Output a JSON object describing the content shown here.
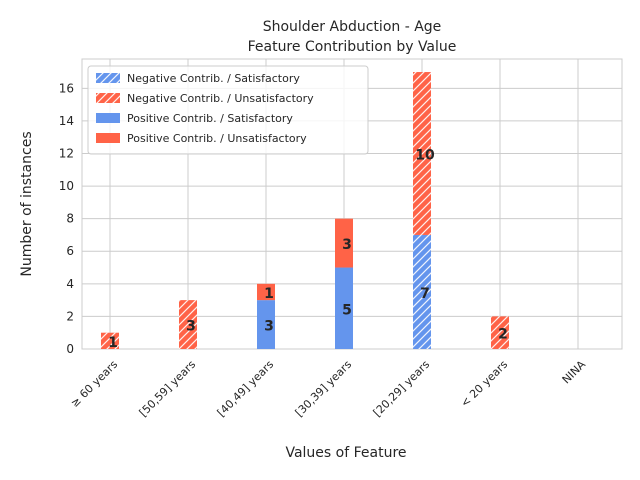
{
  "chart_data": {
    "type": "bar",
    "title": "Shoulder Abduction - Age",
    "subtitle": "Feature Contribution by Value",
    "xlabel": "Values of Feature",
    "ylabel": "Number of instances",
    "ylim": [
      0,
      17.8
    ],
    "yticks": [
      0,
      2,
      4,
      6,
      8,
      10,
      12,
      14,
      16
    ],
    "grid": true,
    "legend_position": "top-left",
    "categories": [
      "≥ 60 years",
      "[50,59] years",
      "[40,49] years",
      "[30,39] years",
      "[20,29] years",
      "< 20 years",
      "NINA"
    ],
    "series": [
      {
        "name": "Negative Contrib. / Satisfactory",
        "color": "#6495ED",
        "hatch": true,
        "group": "negative",
        "values": [
          0,
          0,
          0,
          0,
          7,
          0,
          0
        ]
      },
      {
        "name": "Negative Contrib. / Unsatisfactory",
        "color": "#FF6347",
        "hatch": true,
        "group": "negative",
        "values": [
          1,
          3,
          0,
          0,
          10,
          2,
          0
        ]
      },
      {
        "name": "Positive Contrib. / Satisfactory",
        "color": "#6495ED",
        "hatch": false,
        "group": "positive",
        "values": [
          0,
          0,
          3,
          5,
          0,
          0,
          0
        ]
      },
      {
        "name": "Positive Contrib. / Unsatisfactory",
        "color": "#FF6347",
        "hatch": false,
        "group": "positive",
        "values": [
          0,
          0,
          1,
          3,
          0,
          0,
          0
        ]
      }
    ]
  }
}
